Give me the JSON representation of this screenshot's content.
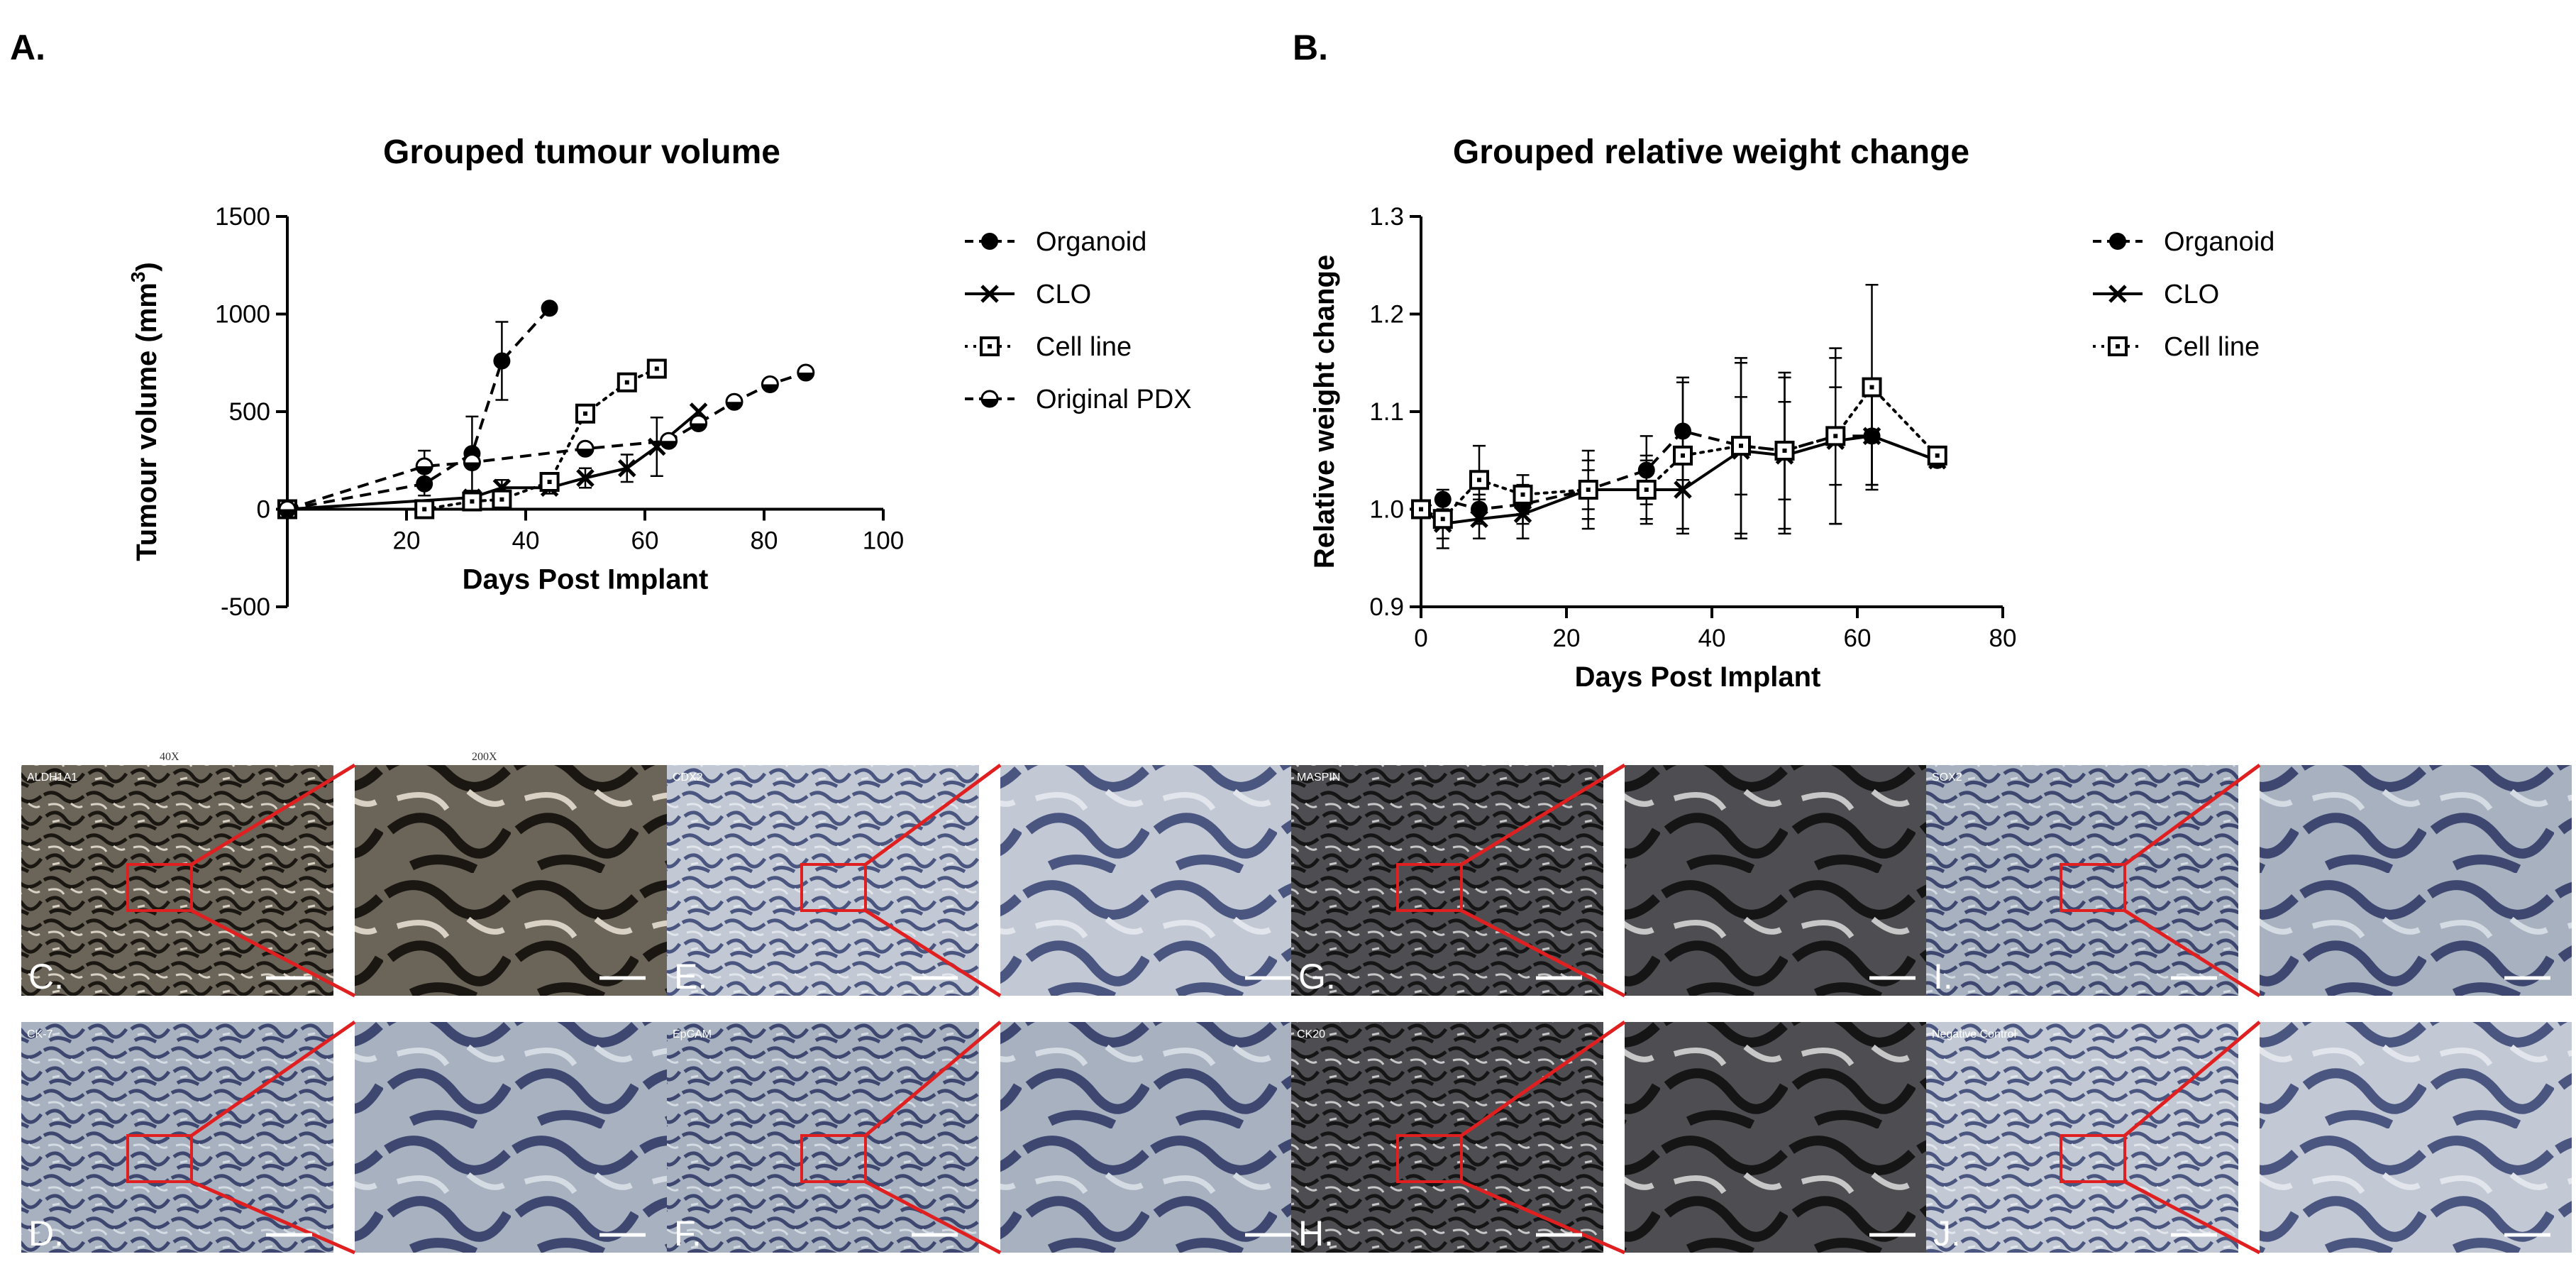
{
  "panel_labels": {
    "a": "A.",
    "b": "B."
  },
  "chart_data": [
    {
      "type": "line",
      "title": "Grouped tumour volume",
      "xlabel": "Days Post Implant",
      "ylabel": "Tumour volume (mm",
      "ylabel_sup": "3",
      "ylabel_close": ")",
      "xlim": [
        0,
        100
      ],
      "ylim": [
        -500,
        1500
      ],
      "xticks": [
        20,
        40,
        60,
        80,
        100
      ],
      "xtick_labels": [
        "20",
        "40",
        "60",
        "80",
        "100"
      ],
      "yticks": [
        -500,
        0,
        500,
        1000,
        1500
      ],
      "ytick_labels": [
        "-500",
        "0",
        "500",
        "1000",
        "1500"
      ],
      "legend_position": "right",
      "series": [
        {
          "name": "Organoid",
          "marker": "filled-circle",
          "line": "dashed",
          "x": [
            0,
            23,
            31,
            36,
            44
          ],
          "y": [
            0,
            130,
            285,
            760,
            1030
          ],
          "err": [
            0,
            60,
            190,
            200,
            0
          ]
        },
        {
          "name": "CLO",
          "marker": "x",
          "line": "solid",
          "x": [
            0,
            31,
            36,
            44,
            50,
            57,
            62,
            69
          ],
          "y": [
            0,
            60,
            110,
            110,
            160,
            210,
            320,
            500
          ],
          "err": [
            0,
            30,
            40,
            30,
            50,
            70,
            150,
            0
          ]
        },
        {
          "name": "Cell line",
          "marker": "open-square",
          "line": "dotted",
          "x": [
            0,
            23,
            31,
            36,
            44,
            50,
            57,
            62
          ],
          "y": [
            0,
            0,
            40,
            50,
            140,
            490,
            650,
            720
          ],
          "err": [
            0,
            0,
            20,
            30,
            40,
            0,
            0,
            0
          ]
        },
        {
          "name": "Original PDX",
          "marker": "half-circle",
          "line": "dashed",
          "x": [
            0,
            23,
            31,
            50,
            64,
            69,
            75,
            81,
            87
          ],
          "y": [
            0,
            220,
            240,
            310,
            350,
            440,
            550,
            640,
            700
          ],
          "err": [
            0,
            80,
            0,
            0,
            0,
            0,
            0,
            0,
            0
          ]
        }
      ]
    },
    {
      "type": "line",
      "title": "Grouped relative weight change",
      "xlabel": "Days Post Implant",
      "ylabel": "Relative weight change",
      "xlim": [
        0,
        80
      ],
      "ylim": [
        0.9,
        1.3
      ],
      "xticks": [
        0,
        20,
        40,
        60,
        80
      ],
      "xtick_labels": [
        "0",
        "20",
        "40",
        "60",
        "80"
      ],
      "yticks": [
        0.9,
        1.0,
        1.1,
        1.2,
        1.3
      ],
      "ytick_labels": [
        "0.9",
        "1.0",
        "1.1",
        "1.2",
        "1.3"
      ],
      "legend_position": "right",
      "series": [
        {
          "name": "Organoid",
          "marker": "filled-circle",
          "line": "dashed",
          "x": [
            0,
            3,
            8,
            14,
            23,
            31,
            36,
            44,
            50,
            57,
            62,
            71
          ],
          "y": [
            1.0,
            1.01,
            1.0,
            1.005,
            1.02,
            1.04,
            1.08,
            1.065,
            1.06,
            1.075,
            1.075,
            1.05
          ],
          "err": [
            0,
            0.01,
            0.015,
            0.02,
            0.03,
            0.035,
            0.05,
            0.05,
            0.05,
            0.05,
            0.05,
            0
          ]
        },
        {
          "name": "CLO",
          "marker": "x",
          "line": "solid",
          "x": [
            0,
            3,
            8,
            14,
            23,
            31,
            36,
            44,
            50,
            57,
            62,
            71
          ],
          "y": [
            1.0,
            0.985,
            0.99,
            0.995,
            1.02,
            1.02,
            1.02,
            1.06,
            1.055,
            1.07,
            1.075,
            1.05
          ],
          "err": [
            0,
            0.025,
            0.02,
            0.025,
            0.04,
            0.035,
            0.04,
            0.09,
            0.08,
            0.085,
            0.05,
            0
          ]
        },
        {
          "name": "Cell line",
          "marker": "open-square",
          "line": "dotted",
          "x": [
            0,
            3,
            8,
            14,
            23,
            31,
            36,
            44,
            50,
            57,
            62,
            71
          ],
          "y": [
            1.0,
            0.99,
            1.03,
            1.015,
            1.02,
            1.02,
            1.055,
            1.065,
            1.06,
            1.075,
            1.125,
            1.055
          ],
          "err": [
            0,
            0.02,
            0.035,
            0.02,
            0.02,
            0.03,
            0.08,
            0.09,
            0.08,
            0.09,
            0.105,
            0
          ]
        }
      ]
    }
  ],
  "micrographs": {
    "header_40x": "40X",
    "header_200x": "200X",
    "panels": [
      {
        "letter": "C.",
        "stain": "ALDH1A1",
        "tone": "dark-brown"
      },
      {
        "letter": "D.",
        "stain": "CK-7",
        "tone": "blue-grey"
      },
      {
        "letter": "E.",
        "stain": "CDX2",
        "tone": "light-blue"
      },
      {
        "letter": "F.",
        "stain": "EpCAM",
        "tone": "blue-grey"
      },
      {
        "letter": "G.",
        "stain": "MASPIN",
        "tone": "dark"
      },
      {
        "letter": "H.",
        "stain": "CK20",
        "tone": "dark"
      },
      {
        "letter": "I.",
        "stain": "SOX2",
        "tone": "blue-grey"
      },
      {
        "letter": "J.",
        "stain": "Negative Control",
        "tone": "light-blue"
      }
    ]
  },
  "colors": {
    "axis": "#000000",
    "zoom_box": "#e02020",
    "background": "#ffffff"
  }
}
